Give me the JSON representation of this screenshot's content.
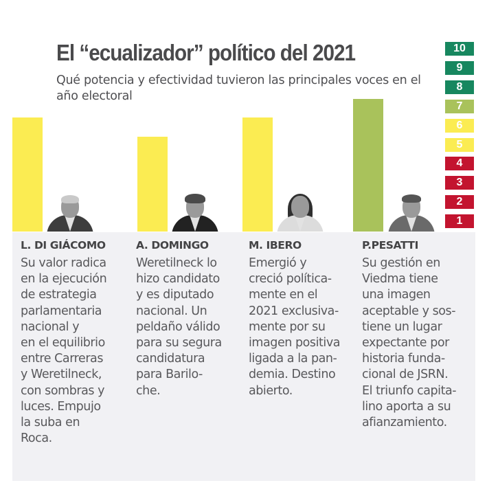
{
  "header": {
    "title": "El “ecualizador” político del 2021",
    "subtitle": "Qué potencia y efectividad tuvieron las principales voces en el año electoral"
  },
  "scale": {
    "levels": [
      {
        "label": "10",
        "color": "#17875f"
      },
      {
        "label": "9",
        "color": "#17875f"
      },
      {
        "label": "8",
        "color": "#17875f"
      },
      {
        "label": "7",
        "color": "#a9c25b"
      },
      {
        "label": "6",
        "color": "#fbec52"
      },
      {
        "label": "5",
        "color": "#fbec52"
      },
      {
        "label": "4",
        "color": "#c3142f"
      },
      {
        "label": "3",
        "color": "#c3142f"
      },
      {
        "label": "2",
        "color": "#c3142f"
      },
      {
        "label": "1",
        "color": "#c3142f"
      }
    ]
  },
  "chart_data": {
    "type": "bar",
    "title": "El “ecualizador” político del 2021",
    "subtitle": "Qué potencia y efectividad tuvieron las principales voces en el año electoral",
    "xlabel": "",
    "ylabel": "",
    "ylim": [
      0,
      10
    ],
    "grid": false,
    "legend": "right (color scale 1–10)",
    "categories": [
      "L. DI GIÁCOMO",
      "A. DOMINGO",
      "M. IBERO",
      "P.PESATTI"
    ],
    "values": [
      6,
      5,
      6,
      7
    ],
    "colors": [
      "#fbec52",
      "#fbec52",
      "#fbec52",
      "#a9c25b"
    ]
  },
  "profiles": [
    {
      "name": "L. DI GIÁCOMO",
      "photo_icon": "portrait-photo-di-giacomo",
      "text": "Su valor radica\nen la ejecución\nde estrategia\nparlamentaria\nnacional y\nen el equilibrio\nentre Carreras\ny Weretilneck,\ncon sombras y\nluces. Empujo\nla suba en\nRoca."
    },
    {
      "name": "A. DOMINGO",
      "photo_icon": "portrait-photo-domingo",
      "text": "Weretilneck lo\nhizo candidato\ny es diputado\nnacional. Un\npeldaño válido\npara su segura\ncandidatura\npara Barilo-\nche."
    },
    {
      "name": "M. IBERO",
      "photo_icon": "portrait-photo-ibero",
      "text": "Emergió y\ncreció política-\nmente en el\n2021 exclusiva-\nmente por su\nimagen positiva\nligada a la pan-\ndemia. Destino\nabierto."
    },
    {
      "name": "P.PESATTI",
      "photo_icon": "portrait-photo-pesatti",
      "text": "Su gestión en\nViedma tiene\nuna imagen\naceptable y sos-\ntiene un lugar\nexpectante por\nhistoria funda-\ncional de JSRN.\nEl triunfo capita-\nlino aporta a su\nafianzamiento."
    }
  ]
}
